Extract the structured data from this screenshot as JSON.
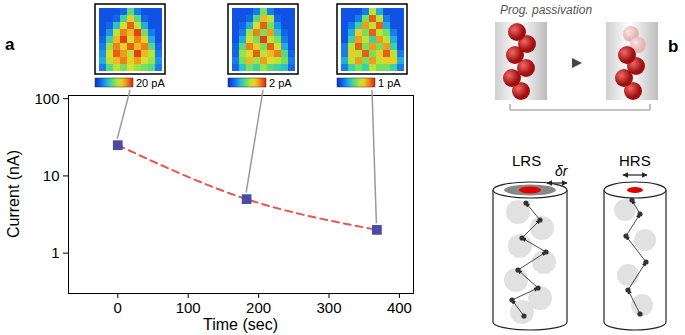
{
  "chart_data": [
    {
      "type": "line",
      "x_label": "Time (sec)",
      "y_label": "Current (nA)",
      "x": [
        0,
        183,
        368
      ],
      "xlim": [
        -70,
        420
      ],
      "xticks": [
        0,
        100,
        200,
        300,
        400
      ],
      "ylim": [
        0.3,
        110
      ],
      "yticks": [
        1,
        10,
        100
      ],
      "log": "y",
      "series": [
        {
          "type": "line",
          "color": "#e8574c",
          "line_style": "dashed",
          "values": [
            25,
            5,
            2
          ]
        },
        {
          "type": "scatter",
          "color": "#4b4ba6",
          "marker": "square",
          "values": [
            25,
            5,
            2
          ]
        }
      ]
    },
    {
      "type": "heatmap",
      "colorbar_range": [
        0,
        20
      ],
      "colorbar_ticks": [
        {
          "value": 20,
          "label": "20 pA"
        }
      ],
      "cells": [
        [
          2,
          2,
          2,
          3,
          9,
          4,
          2,
          2,
          2
        ],
        [
          2,
          2,
          3,
          8,
          14,
          9,
          3,
          2,
          2
        ],
        [
          2,
          3,
          7,
          13,
          18,
          12,
          6,
          2,
          2
        ],
        [
          2,
          5,
          12,
          17,
          15,
          19,
          10,
          4,
          2
        ],
        [
          3,
          8,
          15,
          19,
          13,
          17,
          14,
          6,
          2
        ],
        [
          4,
          11,
          17,
          14,
          18,
          15,
          17,
          9,
          3
        ],
        [
          5,
          13,
          18,
          16,
          12,
          19,
          15,
          12,
          4
        ],
        [
          6,
          12,
          15,
          17,
          14,
          16,
          13,
          11,
          5
        ],
        [
          4,
          9,
          12,
          10,
          13,
          11,
          10,
          9,
          4
        ]
      ]
    },
    {
      "type": "heatmap",
      "colorbar_range": [
        0,
        2
      ],
      "colorbar_ticks": [
        {
          "value": 2,
          "label": "2 pA"
        }
      ],
      "cells": [
        [
          0.2,
          0.2,
          0.2,
          0.4,
          1.0,
          0.4,
          0.2,
          0.2,
          0.2
        ],
        [
          0.2,
          0.2,
          0.3,
          0.9,
          1.5,
          1.2,
          0.3,
          0.2,
          0.2
        ],
        [
          0.2,
          0.3,
          0.6,
          1.3,
          1.8,
          1.0,
          0.5,
          0.2,
          0.2
        ],
        [
          0.2,
          0.4,
          1.1,
          1.7,
          1.0,
          1.6,
          0.7,
          0.3,
          0.2
        ],
        [
          0.2,
          0.6,
          1.3,
          1.0,
          1.9,
          1.2,
          1.0,
          0.4,
          0.2
        ],
        [
          0.3,
          0.9,
          1.7,
          1.4,
          1.0,
          1.8,
          1.3,
          0.6,
          0.2
        ],
        [
          0.3,
          1.1,
          1.3,
          1.8,
          1.2,
          1.5,
          1.7,
          0.9,
          0.3
        ],
        [
          0.4,
          1.0,
          1.5,
          1.1,
          1.6,
          1.3,
          1.2,
          1.0,
          0.4
        ],
        [
          0.3,
          0.7,
          1.0,
          0.8,
          1.1,
          0.9,
          0.8,
          0.7,
          0.3
        ]
      ]
    },
    {
      "type": "heatmap",
      "colorbar_range": [
        0,
        1
      ],
      "colorbar_ticks": [
        {
          "value": 1,
          "label": "1 pA"
        }
      ],
      "cells": [
        [
          0.1,
          0.1,
          0.1,
          0.2,
          0.6,
          0.3,
          0.1,
          0.1,
          0.1
        ],
        [
          0.1,
          0.1,
          0.2,
          0.5,
          0.9,
          0.6,
          0.2,
          0.1,
          0.1
        ],
        [
          0.1,
          0.2,
          0.4,
          0.8,
          0.6,
          0.9,
          0.3,
          0.1,
          0.1
        ],
        [
          0.1,
          0.3,
          0.7,
          0.5,
          0.9,
          0.6,
          0.5,
          0.2,
          0.1
        ],
        [
          0.1,
          0.4,
          0.8,
          0.6,
          0.4,
          0.8,
          0.6,
          0.3,
          0.1
        ],
        [
          0.2,
          0.6,
          0.9,
          0.5,
          0.8,
          0.5,
          0.8,
          0.4,
          0.1
        ],
        [
          0.2,
          0.7,
          0.6,
          0.9,
          0.5,
          0.7,
          0.9,
          0.6,
          0.2
        ],
        [
          0.3,
          0.6,
          0.8,
          0.5,
          0.8,
          0.6,
          0.7,
          0.7,
          0.3
        ],
        [
          0.2,
          0.4,
          0.5,
          0.4,
          0.6,
          0.5,
          0.5,
          0.4,
          0.2
        ]
      ]
    }
  ],
  "panel_labels": [
    "a",
    "b"
  ],
  "diagram": {
    "title": "Prog. passivation",
    "states": [
      "LRS",
      "HRS"
    ],
    "annotation": "δr"
  }
}
